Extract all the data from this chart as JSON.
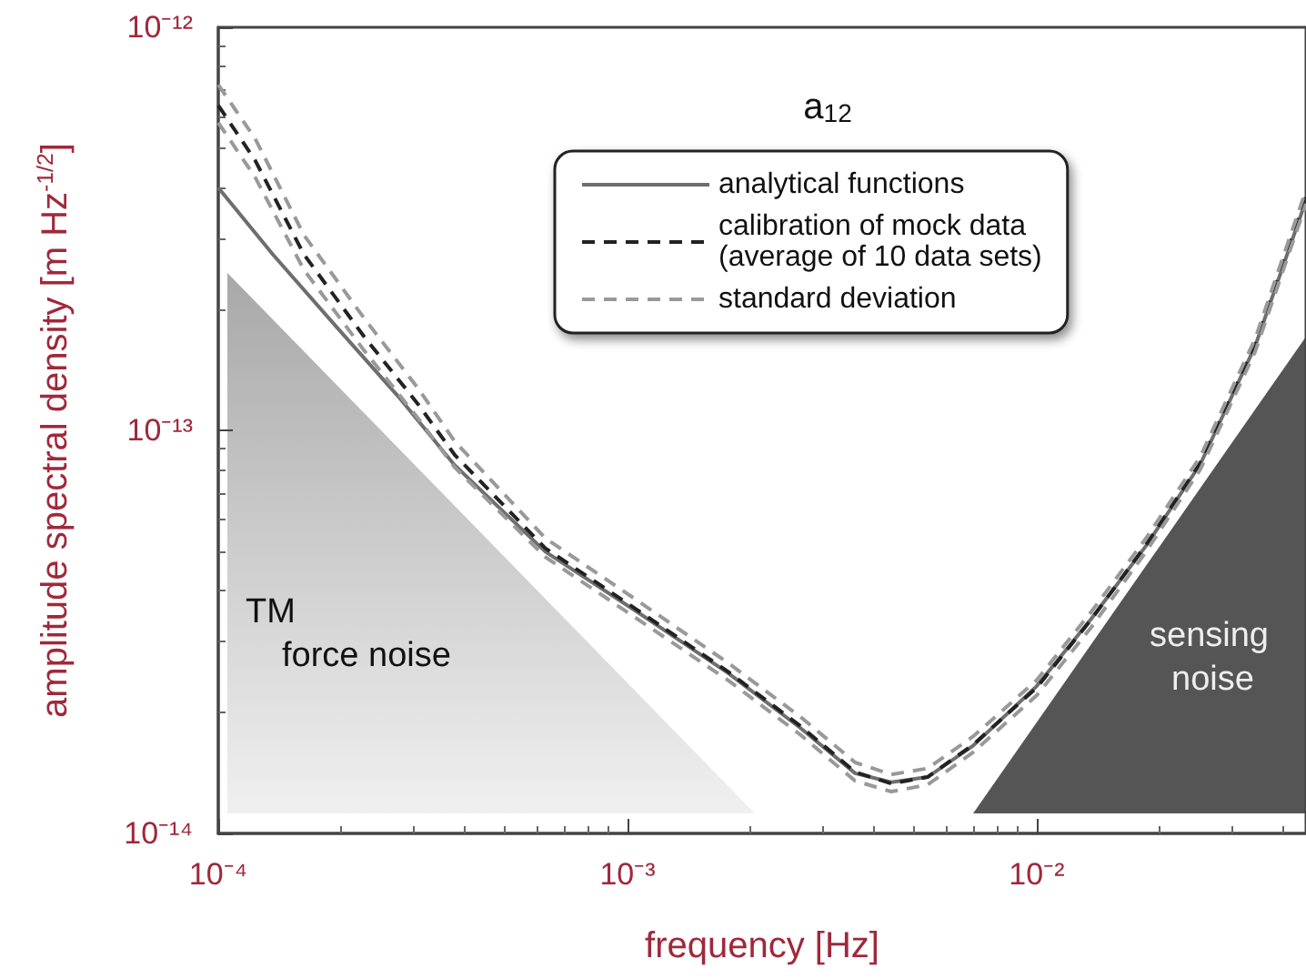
{
  "chart_data": {
    "type": "line",
    "title": "a$_{12}$",
    "xlabel": "frequency [Hz]",
    "ylabel": "amplitude spectral density [m Hz$^{-1/2}$]",
    "log": "xy",
    "xlim": [
      0.0001,
      0.0455
    ],
    "ylim": [
      1e-14,
      1e-12
    ],
    "xticks": [
      {
        "value": 0.0001,
        "label": "10⁻⁴"
      },
      {
        "value": 0.001,
        "label": "10⁻³"
      },
      {
        "value": 0.01,
        "label": "10⁻²"
      }
    ],
    "yticks": [
      {
        "value": 1e-14,
        "label": "10⁻¹⁴"
      },
      {
        "value": 1e-13,
        "label": "10⁻¹³"
      },
      {
        "value": 1e-12,
        "label": "10⁻¹²"
      }
    ],
    "grid": false,
    "legend": "top right",
    "annotations": [
      "TM\nforce noise",
      "sensing\nnoise"
    ],
    "series": [
      {
        "name": "analytical functions",
        "color": "#6e6e6e",
        "line_style": "solid",
        "x": [
          0.0001,
          0.000136,
          0.000195,
          0.000278,
          0.000378,
          0.00063,
          0.00105,
          0.00176,
          0.00264,
          0.0036,
          0.00441,
          0.00541,
          0.00699,
          0.01,
          0.0136,
          0.0185,
          0.0251,
          0.0342,
          0.0455
        ],
        "values": [
          4e-13,
          2.73e-13,
          1.8e-13,
          1.2e-13,
          8.2e-14,
          5e-14,
          3.56e-14,
          2.5e-14,
          1.83e-14,
          1.41e-14,
          1.34e-14,
          1.38e-14,
          1.65e-14,
          2.32e-14,
          3.41e-14,
          5.17e-14,
          8.24e-14,
          1.62e-13,
          3.72e-13
        ]
      },
      {
        "name": "calibration of mock data\n(average of 10 data sets)",
        "color": "#222222",
        "line_style": "dashed",
        "x": [
          0.0001,
          0.000123,
          0.000162,
          0.000227,
          0.000308,
          0.000378,
          0.00063,
          0.00105,
          0.00176,
          0.00264,
          0.0036,
          0.00441,
          0.00541,
          0.00699,
          0.01,
          0.0136,
          0.0185,
          0.0251,
          0.0342,
          0.0455
        ],
        "values": [
          6.4e-13,
          4.68e-13,
          2.73e-13,
          1.71e-13,
          1.16e-13,
          8.7e-14,
          5.1e-14,
          3.6e-14,
          2.52e-14,
          1.85e-14,
          1.42e-14,
          1.33e-14,
          1.38e-14,
          1.66e-14,
          2.3e-14,
          3.4e-14,
          5.2e-14,
          8.3e-14,
          1.63e-13,
          3.8e-13
        ]
      },
      {
        "name": "standard deviation",
        "color": "#999999",
        "line_style": "dashed",
        "x": [
          0.0001,
          0.000123,
          0.000162,
          0.000227,
          0.000308,
          0.000378,
          0.00063,
          0.00105,
          0.00176,
          0.00264,
          0.0036,
          0.00441,
          0.00541,
          0.00699,
          0.01,
          0.0136,
          0.0185,
          0.0251,
          0.0342,
          0.0455
        ],
        "values": [
          7.2e-13,
          5.3e-13,
          3.05e-13,
          1.9e-13,
          1.27e-13,
          9.4e-14,
          5.4e-14,
          3.8e-14,
          2.65e-14,
          1.95e-14,
          1.5e-14,
          1.4e-14,
          1.45e-14,
          1.74e-14,
          2.4e-14,
          3.55e-14,
          5.4e-14,
          8.6e-14,
          1.69e-13,
          3.95e-13
        ]
      },
      {
        "color": "#999999",
        "line_style": "dashed",
        "x": [
          0.0001,
          0.000123,
          0.000162,
          0.000227,
          0.000308,
          0.000378,
          0.00063,
          0.00105,
          0.00176,
          0.00264,
          0.0036,
          0.00441,
          0.00541,
          0.00699,
          0.01,
          0.0136,
          0.0185,
          0.0251,
          0.0342,
          0.0455
        ],
        "values": [
          5.8e-13,
          4.25e-13,
          2.5e-13,
          1.58e-13,
          1.07e-13,
          8.1e-14,
          4.85e-14,
          3.42e-14,
          2.4e-14,
          1.76e-14,
          1.35e-14,
          1.27e-14,
          1.32e-14,
          1.59e-14,
          2.2e-14,
          3.25e-14,
          5e-14,
          8e-14,
          1.57e-13,
          3.65e-13
        ]
      }
    ]
  }
}
